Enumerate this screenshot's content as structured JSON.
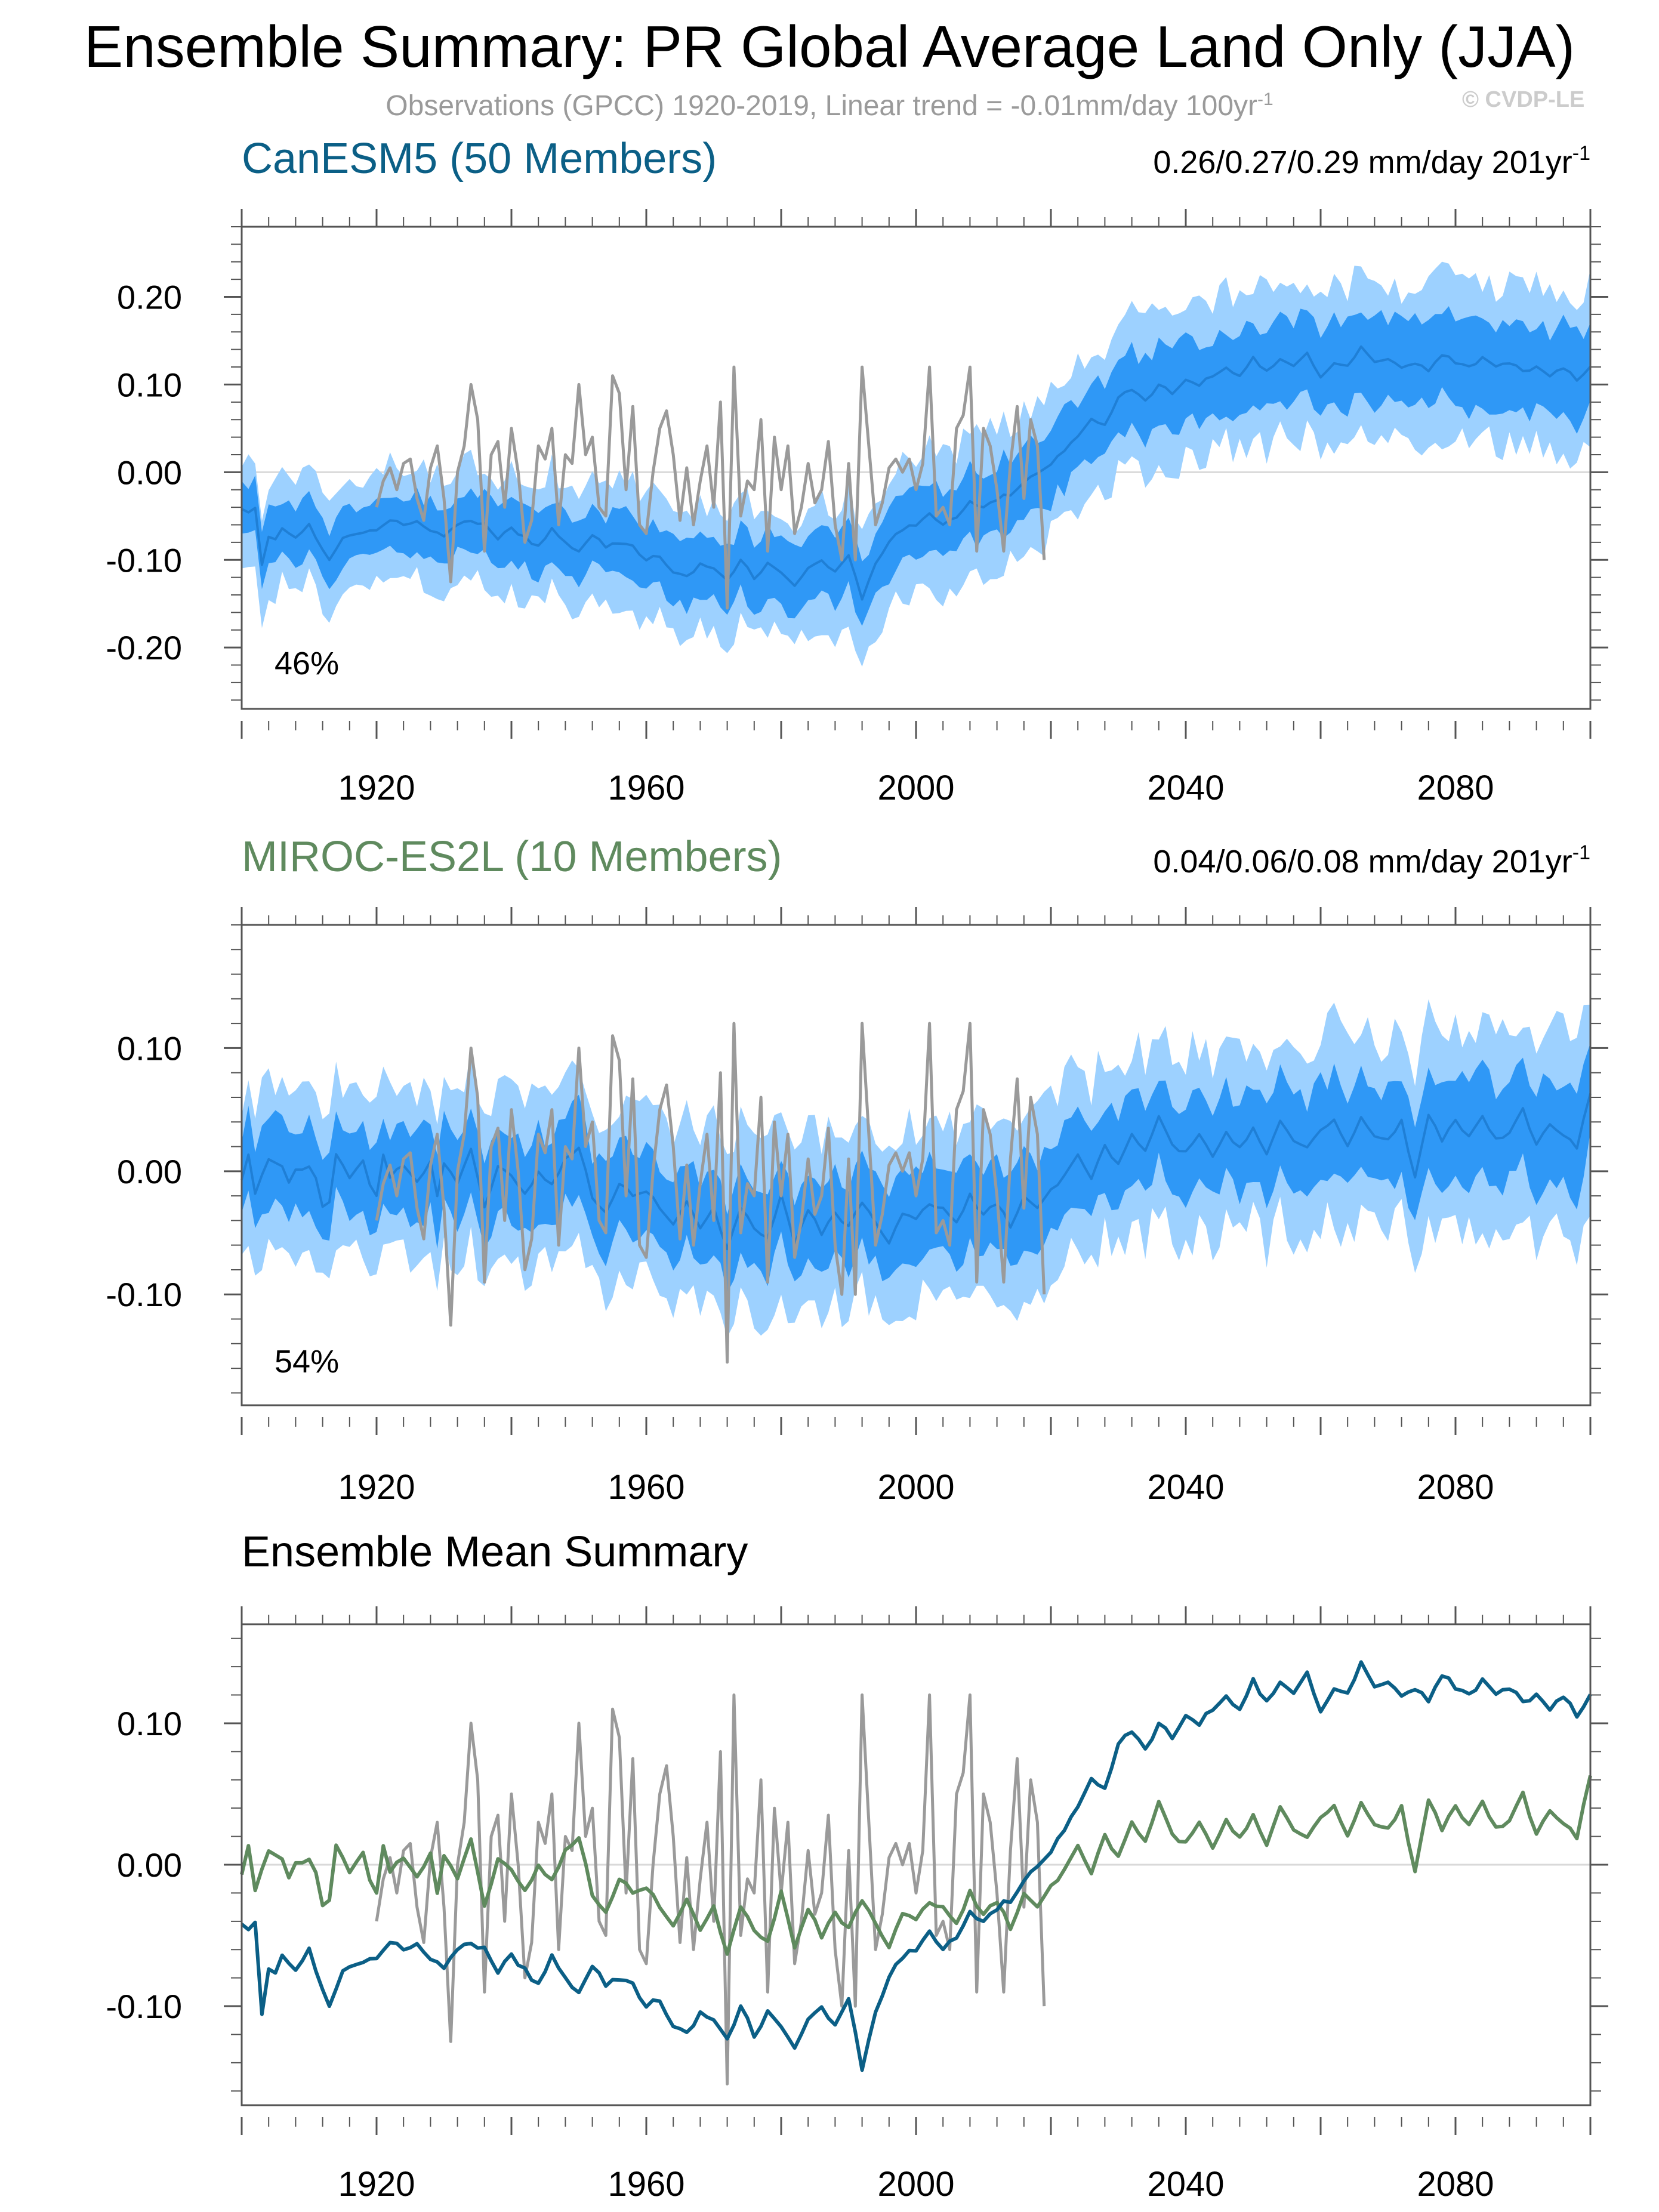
{
  "title": "Ensemble Summary: PR Global Average Land Only (JJA)",
  "subtitle": {
    "text": "Observations (GPCC) 1920-2019, Linear trend = -0.01mm/day 100yr",
    "sup": "-1"
  },
  "copyright": "© CVDP-LE",
  "colors": {
    "obs": "#9a9a9a",
    "band_outer": "#9dd1ff",
    "band_inner": "#2f98f6",
    "band_mean": "#1f7fd6",
    "canesm5": "#0b5f86",
    "miroc": "#5f8a5e",
    "zero_line": "#d9d9d9",
    "frame": "#555555"
  },
  "chart_data": [
    {
      "type": "area",
      "title": "CanESM5 (50 Members)",
      "title_color": "#0b5f86",
      "trend_text": "0.26/0.27/0.29 mm/day 201yr",
      "trend_sup": "-1",
      "annotation": "46%",
      "xlim": [
        1900,
        2100
      ],
      "ylim": [
        -0.27,
        0.28
      ],
      "yticks": [
        -0.2,
        -0.1,
        0.0,
        0.1,
        0.2
      ],
      "ytick_labels": [
        "-0.20",
        "-0.10",
        "0.00",
        "0.10",
        "0.20"
      ],
      "xticks": [
        1920,
        1960,
        2000,
        2040,
        2080
      ],
      "xtick_labels": [
        "1920",
        "1960",
        "2000",
        "2040",
        "2080"
      ],
      "ensemble_mean": [
        [
          1900,
          -0.04
        ],
        [
          1901,
          -0.045
        ],
        [
          1902,
          -0.04
        ],
        [
          1903,
          -0.105
        ],
        [
          1904,
          -0.075
        ],
        [
          1905,
          -0.075
        ],
        [
          1906,
          -0.065
        ],
        [
          1908,
          -0.075
        ],
        [
          1910,
          -0.06
        ],
        [
          1912,
          -0.09
        ],
        [
          1913,
          -0.1
        ],
        [
          1915,
          -0.075
        ],
        [
          1918,
          -0.07
        ],
        [
          1920,
          -0.065
        ],
        [
          1922,
          -0.055
        ],
        [
          1924,
          -0.06
        ],
        [
          1926,
          -0.055
        ],
        [
          1928,
          -0.065
        ],
        [
          1930,
          -0.075
        ],
        [
          1932,
          -0.06
        ],
        [
          1934,
          -0.055
        ],
        [
          1936,
          -0.06
        ],
        [
          1938,
          -0.075
        ],
        [
          1940,
          -0.065
        ],
        [
          1942,
          -0.075
        ],
        [
          1944,
          -0.085
        ],
        [
          1946,
          -0.065
        ],
        [
          1948,
          -0.08
        ],
        [
          1950,
          -0.09
        ],
        [
          1952,
          -0.07
        ],
        [
          1954,
          -0.085
        ],
        [
          1956,
          -0.08
        ],
        [
          1958,
          -0.085
        ],
        [
          1960,
          -0.1
        ],
        [
          1962,
          -0.095
        ],
        [
          1964,
          -0.115
        ],
        [
          1966,
          -0.12
        ],
        [
          1968,
          -0.105
        ],
        [
          1970,
          -0.11
        ],
        [
          1972,
          -0.125
        ],
        [
          1974,
          -0.1
        ],
        [
          1976,
          -0.12
        ],
        [
          1978,
          -0.105
        ],
        [
          1980,
          -0.115
        ],
        [
          1982,
          -0.13
        ],
        [
          1984,
          -0.11
        ],
        [
          1986,
          -0.1
        ],
        [
          1988,
          -0.115
        ],
        [
          1990,
          -0.095
        ],
        [
          1992,
          -0.145
        ],
        [
          1994,
          -0.105
        ],
        [
          1996,
          -0.08
        ],
        [
          1998,
          -0.065
        ],
        [
          2000,
          -0.06
        ],
        [
          2002,
          -0.045
        ],
        [
          2004,
          -0.06
        ],
        [
          2006,
          -0.05
        ],
        [
          2008,
          -0.035
        ],
        [
          2010,
          -0.04
        ],
        [
          2012,
          -0.03
        ],
        [
          2014,
          -0.025
        ],
        [
          2016,
          -0.01
        ],
        [
          2018,
          0.0
        ],
        [
          2020,
          0.01
        ],
        [
          2022,
          0.025
        ],
        [
          2024,
          0.04
        ],
        [
          2026,
          0.06
        ],
        [
          2028,
          0.055
        ],
        [
          2030,
          0.085
        ],
        [
          2032,
          0.095
        ],
        [
          2034,
          0.08
        ],
        [
          2036,
          0.1
        ],
        [
          2038,
          0.09
        ],
        [
          2040,
          0.105
        ],
        [
          2042,
          0.1
        ],
        [
          2044,
          0.11
        ],
        [
          2046,
          0.12
        ],
        [
          2048,
          0.11
        ],
        [
          2050,
          0.13
        ],
        [
          2052,
          0.115
        ],
        [
          2054,
          0.13
        ],
        [
          2056,
          0.12
        ],
        [
          2058,
          0.135
        ],
        [
          2060,
          0.11
        ],
        [
          2062,
          0.125
        ],
        [
          2064,
          0.12
        ],
        [
          2066,
          0.145
        ],
        [
          2068,
          0.125
        ],
        [
          2070,
          0.13
        ],
        [
          2072,
          0.12
        ],
        [
          2074,
          0.125
        ],
        [
          2076,
          0.115
        ],
        [
          2078,
          0.135
        ],
        [
          2080,
          0.125
        ],
        [
          2082,
          0.12
        ],
        [
          2084,
          0.13
        ],
        [
          2086,
          0.12
        ],
        [
          2088,
          0.125
        ],
        [
          2090,
          0.115
        ],
        [
          2092,
          0.12
        ],
        [
          2094,
          0.11
        ],
        [
          2096,
          0.12
        ],
        [
          2098,
          0.105
        ],
        [
          2100,
          0.12
        ]
      ],
      "inner_halfwidth": [
        [
          1900,
          0.03
        ],
        [
          1960,
          0.035
        ],
        [
          2000,
          0.04
        ],
        [
          2040,
          0.045
        ],
        [
          2100,
          0.05
        ]
      ],
      "outer_halfwidth": [
        [
          1900,
          0.06
        ],
        [
          1960,
          0.07
        ],
        [
          2000,
          0.075
        ],
        [
          2040,
          0.085
        ],
        [
          2100,
          0.09
        ]
      ]
    },
    {
      "type": "area",
      "title": "MIROC-ES2L (10 Members)",
      "title_color": "#5f8a5e",
      "trend_text": "0.04/0.06/0.08 mm/day 201yr",
      "trend_sup": "-1",
      "annotation": "54%",
      "xlim": [
        1900,
        2100
      ],
      "ylim": [
        -0.19,
        0.2
      ],
      "yticks": [
        -0.1,
        0.0,
        0.1
      ],
      "ytick_labels": [
        "-0.10",
        "0.00",
        "0.10"
      ],
      "xticks": [
        1920,
        1960,
        2000,
        2040,
        2080
      ],
      "xtick_labels": [
        "1920",
        "1960",
        "2000",
        "2040",
        "2080"
      ],
      "ensemble_mean": [
        [
          1900,
          -0.005
        ],
        [
          1901,
          0.012
        ],
        [
          1902,
          -0.02
        ],
        [
          1904,
          0.01
        ],
        [
          1906,
          0.005
        ],
        [
          1907,
          -0.01
        ],
        [
          1908,
          0.0
        ],
        [
          1910,
          0.005
        ],
        [
          1911,
          -0.005
        ],
        [
          1912,
          -0.03
        ],
        [
          1913,
          -0.025
        ],
        [
          1914,
          0.015
        ],
        [
          1916,
          -0.005
        ],
        [
          1918,
          0.01
        ],
        [
          1919,
          -0.01
        ],
        [
          1920,
          -0.02
        ],
        [
          1921,
          0.015
        ],
        [
          1922,
          -0.005
        ],
        [
          1924,
          0.005
        ],
        [
          1926,
          -0.01
        ],
        [
          1928,
          0.01
        ],
        [
          1929,
          -0.02
        ],
        [
          1930,
          0.005
        ],
        [
          1932,
          -0.01
        ],
        [
          1934,
          0.02
        ],
        [
          1936,
          -0.03
        ],
        [
          1938,
          0.005
        ],
        [
          1940,
          -0.005
        ],
        [
          1942,
          -0.02
        ],
        [
          1944,
          0.0
        ],
        [
          1946,
          -0.01
        ],
        [
          1948,
          0.01
        ],
        [
          1950,
          0.02
        ],
        [
          1952,
          -0.02
        ],
        [
          1954,
          -0.035
        ],
        [
          1956,
          -0.01
        ],
        [
          1958,
          -0.02
        ],
        [
          1960,
          -0.015
        ],
        [
          1962,
          -0.03
        ],
        [
          1964,
          -0.045
        ],
        [
          1966,
          -0.025
        ],
        [
          1968,
          -0.045
        ],
        [
          1970,
          -0.03
        ],
        [
          1972,
          -0.065
        ],
        [
          1974,
          -0.03
        ],
        [
          1976,
          -0.045
        ],
        [
          1978,
          -0.055
        ],
        [
          1980,
          -0.02
        ],
        [
          1982,
          -0.06
        ],
        [
          1984,
          -0.03
        ],
        [
          1986,
          -0.05
        ],
        [
          1988,
          -0.035
        ],
        [
          1990,
          -0.045
        ],
        [
          1992,
          -0.025
        ],
        [
          1994,
          -0.04
        ],
        [
          1996,
          -0.06
        ],
        [
          1998,
          -0.035
        ],
        [
          2000,
          -0.04
        ],
        [
          2002,
          -0.025
        ],
        [
          2004,
          -0.03
        ],
        [
          2006,
          -0.04
        ],
        [
          2008,
          -0.02
        ],
        [
          2010,
          -0.035
        ],
        [
          2012,
          -0.025
        ],
        [
          2014,
          -0.045
        ],
        [
          2016,
          -0.02
        ],
        [
          2018,
          -0.03
        ],
        [
          2020,
          -0.015
        ],
        [
          2022,
          -0.005
        ],
        [
          2024,
          0.015
        ],
        [
          2026,
          -0.005
        ],
        [
          2028,
          0.02
        ],
        [
          2030,
          0.005
        ],
        [
          2032,
          0.03
        ],
        [
          2034,
          0.015
        ],
        [
          2036,
          0.045
        ],
        [
          2038,
          0.02
        ],
        [
          2040,
          0.015
        ],
        [
          2042,
          0.03
        ],
        [
          2044,
          0.01
        ],
        [
          2046,
          0.03
        ],
        [
          2048,
          0.02
        ],
        [
          2050,
          0.035
        ],
        [
          2052,
          0.015
        ],
        [
          2054,
          0.04
        ],
        [
          2056,
          0.025
        ],
        [
          2058,
          0.02
        ],
        [
          2060,
          0.035
        ],
        [
          2062,
          0.04
        ],
        [
          2064,
          0.02
        ],
        [
          2066,
          0.045
        ],
        [
          2068,
          0.03
        ],
        [
          2070,
          0.025
        ],
        [
          2072,
          0.04
        ],
        [
          2074,
          -0.005
        ],
        [
          2076,
          0.045
        ],
        [
          2078,
          0.025
        ],
        [
          2080,
          0.04
        ],
        [
          2082,
          0.03
        ],
        [
          2084,
          0.045
        ],
        [
          2086,
          0.025
        ],
        [
          2088,
          0.03
        ],
        [
          2090,
          0.05
        ],
        [
          2092,
          0.02
        ],
        [
          2094,
          0.04
        ],
        [
          2096,
          0.03
        ],
        [
          2098,
          0.02
        ],
        [
          2100,
          0.062
        ]
      ],
      "inner_halfwidth": [
        [
          1900,
          0.035
        ],
        [
          2000,
          0.035
        ],
        [
          2100,
          0.04
        ]
      ],
      "outer_halfwidth": [
        [
          1900,
          0.065
        ],
        [
          2000,
          0.07
        ],
        [
          2100,
          0.08
        ]
      ]
    },
    {
      "type": "line",
      "title": "Ensemble Mean Summary",
      "title_color": "#000000",
      "xlim": [
        1900,
        2100
      ],
      "ylim": [
        -0.17,
        0.17
      ],
      "yticks": [
        -0.1,
        0.0,
        0.1
      ],
      "ytick_labels": [
        "-0.10",
        "0.00",
        "0.10"
      ],
      "xticks": [
        1920,
        1960,
        2000,
        2040,
        2080
      ],
      "xtick_labels": [
        "1920",
        "1960",
        "2000",
        "2040",
        "2080"
      ],
      "series_refs": [
        "canesm5",
        "miroc"
      ]
    }
  ],
  "observations": [
    [
      1920,
      -0.04
    ],
    [
      1921,
      -0.01
    ],
    [
      1922,
      0.005
    ],
    [
      1923,
      -0.02
    ],
    [
      1924,
      0.01
    ],
    [
      1925,
      0.015
    ],
    [
      1926,
      -0.03
    ],
    [
      1927,
      -0.055
    ],
    [
      1928,
      0.005
    ],
    [
      1929,
      0.03
    ],
    [
      1930,
      -0.03
    ],
    [
      1931,
      -0.125
    ],
    [
      1932,
      0.0
    ],
    [
      1933,
      0.03
    ],
    [
      1934,
      0.1
    ],
    [
      1935,
      0.06
    ],
    [
      1936,
      -0.09
    ],
    [
      1937,
      0.02
    ],
    [
      1938,
      0.035
    ],
    [
      1939,
      -0.04
    ],
    [
      1940,
      0.05
    ],
    [
      1941,
      0.0
    ],
    [
      1942,
      -0.08
    ],
    [
      1943,
      -0.055
    ],
    [
      1944,
      0.03
    ],
    [
      1945,
      0.015
    ],
    [
      1946,
      0.05
    ],
    [
      1947,
      -0.06
    ],
    [
      1948,
      0.02
    ],
    [
      1949,
      0.01
    ],
    [
      1950,
      0.1
    ],
    [
      1951,
      0.02
    ],
    [
      1952,
      0.04
    ],
    [
      1953,
      -0.04
    ],
    [
      1954,
      -0.05
    ],
    [
      1955,
      0.11
    ],
    [
      1956,
      0.09
    ],
    [
      1957,
      -0.02
    ],
    [
      1958,
      0.075
    ],
    [
      1959,
      -0.06
    ],
    [
      1960,
      -0.07
    ],
    [
      1961,
      0.0
    ],
    [
      1962,
      0.05
    ],
    [
      1963,
      0.07
    ],
    [
      1964,
      0.02
    ],
    [
      1965,
      -0.055
    ],
    [
      1966,
      0.005
    ],
    [
      1967,
      -0.06
    ],
    [
      1968,
      -0.01
    ],
    [
      1969,
      0.03
    ],
    [
      1970,
      -0.04
    ],
    [
      1971,
      0.08
    ],
    [
      1972,
      -0.155
    ],
    [
      1973,
      0.12
    ],
    [
      1974,
      -0.05
    ],
    [
      1975,
      -0.01
    ],
    [
      1976,
      -0.02
    ],
    [
      1977,
      0.06
    ],
    [
      1978,
      -0.09
    ],
    [
      1979,
      0.04
    ],
    [
      1980,
      -0.02
    ],
    [
      1981,
      0.03
    ],
    [
      1982,
      -0.07
    ],
    [
      1983,
      -0.04
    ],
    [
      1984,
      0.01
    ],
    [
      1985,
      -0.035
    ],
    [
      1986,
      -0.02
    ],
    [
      1987,
      0.035
    ],
    [
      1988,
      -0.06
    ],
    [
      1989,
      -0.1
    ],
    [
      1990,
      0.01
    ],
    [
      1991,
      -0.1
    ],
    [
      1992,
      0.12
    ],
    [
      1993,
      0.03
    ],
    [
      1994,
      -0.06
    ],
    [
      1995,
      -0.035
    ],
    [
      1996,
      0.005
    ],
    [
      1997,
      0.015
    ],
    [
      1998,
      0.0
    ],
    [
      1999,
      0.015
    ],
    [
      2000,
      -0.02
    ],
    [
      2001,
      0.01
    ],
    [
      2002,
      0.12
    ],
    [
      2003,
      -0.05
    ],
    [
      2004,
      -0.04
    ],
    [
      2005,
      -0.06
    ],
    [
      2006,
      0.05
    ],
    [
      2007,
      0.065
    ],
    [
      2008,
      0.12
    ],
    [
      2009,
      -0.09
    ],
    [
      2010,
      0.05
    ],
    [
      2011,
      0.03
    ],
    [
      2012,
      -0.02
    ],
    [
      2013,
      -0.09
    ],
    [
      2014,
      0.01
    ],
    [
      2015,
      0.075
    ],
    [
      2016,
      -0.03
    ],
    [
      2017,
      0.06
    ],
    [
      2018,
      0.03
    ],
    [
      2019,
      -0.1
    ]
  ]
}
